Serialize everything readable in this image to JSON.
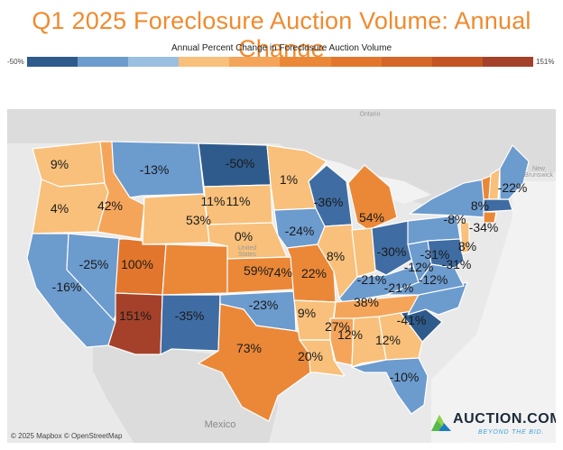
{
  "title": "Q1 2025 Foreclosure Auction Volume: Annual Change",
  "legend": {
    "title": "Annual Percent Change in Foreclosure Auction Volume",
    "min_label": "-50%",
    "max_label": "151%",
    "colors": [
      "#2e5b8c",
      "#6c9bce",
      "#9bbfe1",
      "#f8c07a",
      "#f5a55a",
      "#ea8837",
      "#e2762c",
      "#d36628",
      "#c45422",
      "#a5412a"
    ]
  },
  "map": {
    "attribution": "© 2025 Mapbox © OpenStreetMap",
    "background_labels": {
      "ontario": "Ontario",
      "new_brunswick": "New Brunswick",
      "united_states": "United States",
      "mexico": "Mexico"
    },
    "states": {
      "WA": {
        "label": "9%",
        "color": "#f8c07a"
      },
      "OR": {
        "label": "4%",
        "color": "#f8c07a"
      },
      "CA": {
        "label": "-16%",
        "color": "#6c9bce"
      },
      "ID": {
        "label": "42%",
        "color": "#f5a55a"
      },
      "NV": {
        "label": "-25%",
        "color": "#6c9bce"
      },
      "MT": {
        "label": "-13%",
        "color": "#6c9bce"
      },
      "WY": {
        "label": "11%",
        "color": "#f8c07a"
      },
      "UT": {
        "label": "100%",
        "color": "#e2762c"
      },
      "AZ": {
        "label": "151%",
        "color": "#a5412a"
      },
      "CO": {
        "label": "53%",
        "color": "#ea8837"
      },
      "NM": {
        "label": "-35%",
        "color": "#3f6da3"
      },
      "ND": {
        "label": "-50%",
        "color": "#2e5b8c"
      },
      "SD": {
        "label": "11%",
        "color": "#f8c07a"
      },
      "NE": {
        "label": "0%",
        "color": "#f8c07a"
      },
      "KS": {
        "label": "59%",
        "color": "#ea8837"
      },
      "OK": {
        "label": "-23%",
        "color": "#6c9bce"
      },
      "TX": {
        "label": "73%",
        "color": "#ea8837"
      },
      "MN": {
        "label": "1%",
        "color": "#f8c07a"
      },
      "IA": {
        "label": "-24%",
        "color": "#6c9bce"
      },
      "MO": {
        "label": "74%",
        "color": "#ea8837"
      },
      "AR": {
        "label": "9%",
        "color": "#f8c07a"
      },
      "LA": {
        "label": "20%",
        "color": "#f8c07a"
      },
      "WI": {
        "label": "-36%",
        "color": "#3f6da3"
      },
      "IL": {
        "label": "22%",
        "color": "#f8c07a"
      },
      "MI": {
        "label": "54%",
        "color": "#ea8837"
      },
      "IN": {
        "label": "8%",
        "color": "#f8c07a"
      },
      "OH": {
        "label": "-30%",
        "color": "#3f6da3"
      },
      "KY": {
        "label": "-21%",
        "color": "#6c9bce"
      },
      "TN": {
        "label": "38%",
        "color": "#f5a55a"
      },
      "MS": {
        "label": "27%",
        "color": "#f5a55a"
      },
      "AL": {
        "label": "12%",
        "color": "#f8c07a"
      },
      "GA": {
        "label": "12%",
        "color": "#f8c07a"
      },
      "FL": {
        "label": "-10%",
        "color": "#6c9bce"
      },
      "SC": {
        "label": "-41%",
        "color": "#2e5b8c"
      },
      "NC": {
        "label": "-12%",
        "color": "#6c9bce"
      },
      "VA": {
        "label": "-12%",
        "color": "#6c9bce"
      },
      "WV": {
        "label": "-21%",
        "color": "#6c9bce"
      },
      "PA": {
        "label": "-31%",
        "color": "#6c9bce"
      },
      "NY": {
        "label": "-8%",
        "color": "#6c9bce"
      },
      "MD": {
        "label": "-31%",
        "color": "#3f6da3"
      },
      "NJ": {
        "label": "8%",
        "color": "#f8c07a"
      },
      "NH": {
        "label": "8%",
        "color": "#f8c07a"
      },
      "MA": {
        "label": "-34%",
        "color": "#3f6da3"
      },
      "ME": {
        "label": "-22%",
        "color": "#6c9bce"
      },
      "VT": {
        "label": "",
        "color": "#ea8837"
      },
      "CT": {
        "label": "",
        "color": "#ea8837"
      }
    }
  },
  "brand": {
    "name": "AUCTION.COM",
    "tagline": "BEYOND THE BID."
  }
}
